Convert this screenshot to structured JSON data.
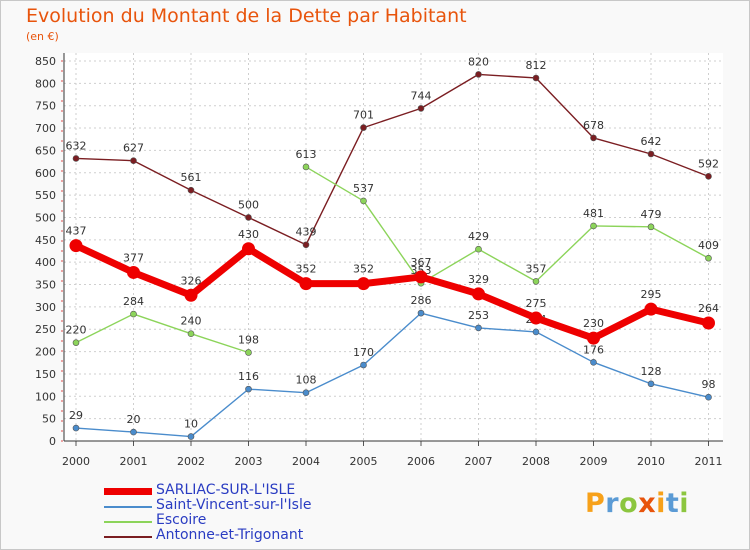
{
  "header": {
    "title": "Evolution du Montant de la Dette par Habitant",
    "unit": "(en €)"
  },
  "brand": {
    "letters": [
      "P",
      "r",
      "o",
      "x",
      "i",
      "t",
      "i"
    ],
    "colors": [
      "#f7a11a",
      "#5b9bd5",
      "#8cc63f",
      "#e8540c",
      "#f7a11a",
      "#5b9bd5",
      "#8cc63f"
    ]
  },
  "chart_data": {
    "type": "line",
    "x": [
      "2000",
      "2001",
      "2002",
      "2003",
      "2004",
      "2005",
      "2006",
      "2007",
      "2008",
      "2009",
      "2010",
      "2011"
    ],
    "ylim": [
      0,
      850
    ],
    "yticks": [
      0,
      50,
      100,
      150,
      200,
      250,
      300,
      350,
      400,
      450,
      500,
      550,
      600,
      650,
      700,
      750,
      800,
      850
    ],
    "grid": true,
    "legend": "bottom-left",
    "series": [
      {
        "name": "Antonne-et-Trigonant",
        "color": "#7b1e22",
        "values": [
          632,
          627,
          561,
          500,
          439,
          701,
          744,
          820,
          812,
          678,
          642,
          592
        ]
      },
      {
        "name": "Escoire",
        "color": "#8cd45a",
        "values": [
          220,
          284,
          240,
          198,
          613,
          537,
          353,
          429,
          357,
          481,
          479,
          409
        ]
      },
      {
        "name": "Saint-Vincent-sur-l'Isle",
        "color": "#4a8ccc",
        "values": [
          29,
          20,
          10,
          116,
          108,
          170,
          286,
          253,
          244,
          176,
          128,
          98
        ]
      },
      {
        "name": "SARLIAC-SUR-L'ISLE",
        "color": "#ee0000",
        "values": [
          437,
          377,
          326,
          430,
          352,
          352,
          367,
          329,
          275,
          230,
          295,
          264
        ]
      }
    ],
    "legend_order": [
      "SARLIAC-SUR-L'ISLE",
      "Saint-Vincent-sur-l'Isle",
      "Escoire",
      "Antonne-et-Trigonant"
    ]
  }
}
